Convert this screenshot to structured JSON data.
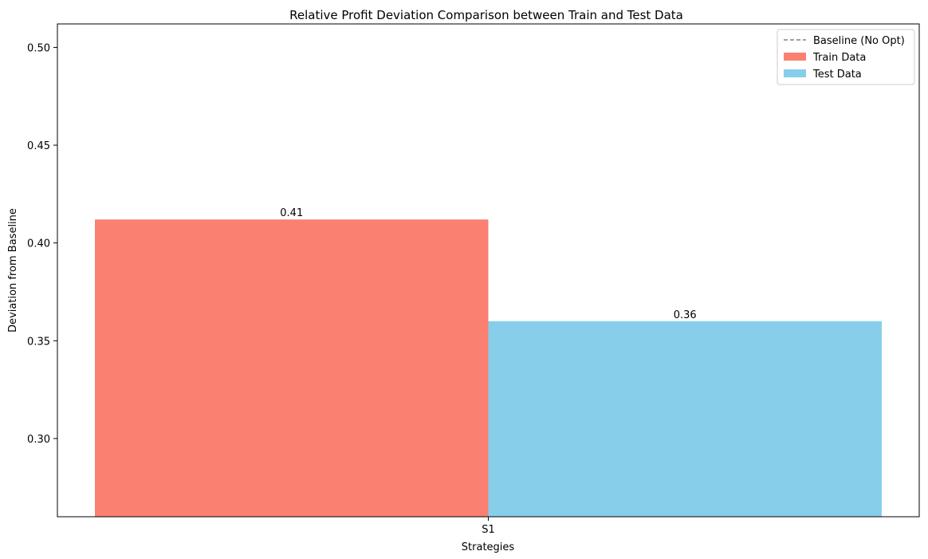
{
  "chart_data": {
    "type": "bar",
    "title": "Relative Profit Deviation Comparison between Train and Test Data",
    "xlabel": "Strategies",
    "ylabel": "Deviation from Baseline",
    "categories": [
      "S1"
    ],
    "series": [
      {
        "name": "Train Data",
        "values": [
          0.412
        ],
        "label": "0.41",
        "color": "#fa8072"
      },
      {
        "name": "Test Data",
        "values": [
          0.36
        ],
        "label": "0.36",
        "color": "#87ceeb"
      }
    ],
    "baseline": {
      "name": "Baseline (No Opt)",
      "value": 0,
      "color": "#808080",
      "style": "dashed"
    },
    "ylim": [
      0.26,
      0.512
    ],
    "yticks": [
      "0.30",
      "0.35",
      "0.40",
      "0.45",
      "0.50"
    ],
    "legend_position": "top-right",
    "grid": false
  }
}
